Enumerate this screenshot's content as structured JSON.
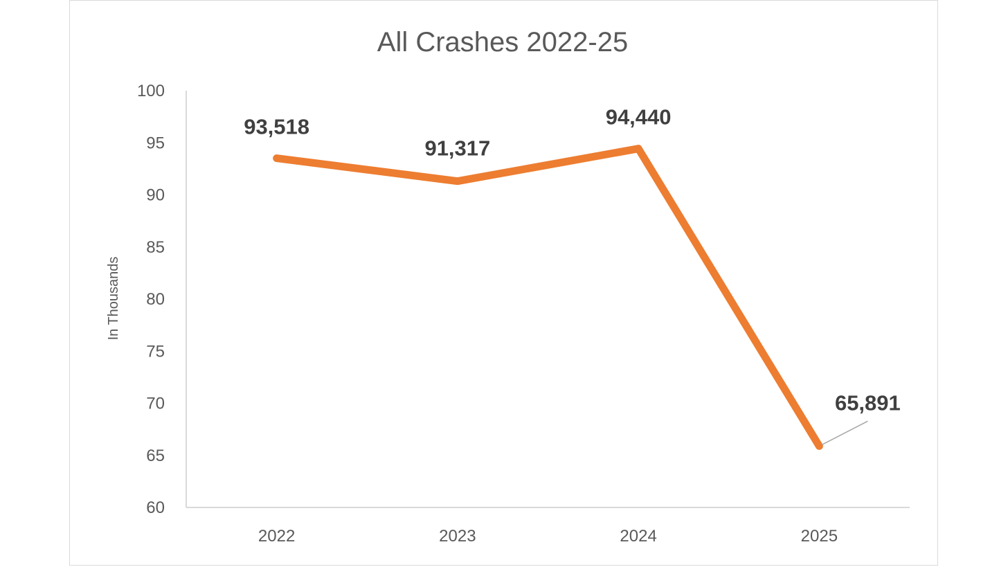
{
  "chart_data": {
    "type": "line",
    "title": "All Crashes 2022-25",
    "xlabel": "",
    "ylabel": "In Thousands",
    "categories": [
      "2022",
      "2023",
      "2024",
      "2025"
    ],
    "series": [
      {
        "values": [
          93.518,
          91.317,
          94.44,
          65.891
        ],
        "data_labels": [
          "93,518",
          "91,317",
          "94,440",
          "65,891"
        ]
      }
    ],
    "ylim": [
      60,
      100
    ],
    "yticks": [
      "60",
      "65",
      "70",
      "75",
      "80",
      "85",
      "90",
      "95",
      "100"
    ],
    "grid": false,
    "legend": "none",
    "colors": {
      "line": "#ed7d31",
      "axis": "#d9d9d9",
      "text": "#595959",
      "label": "#404040"
    }
  }
}
